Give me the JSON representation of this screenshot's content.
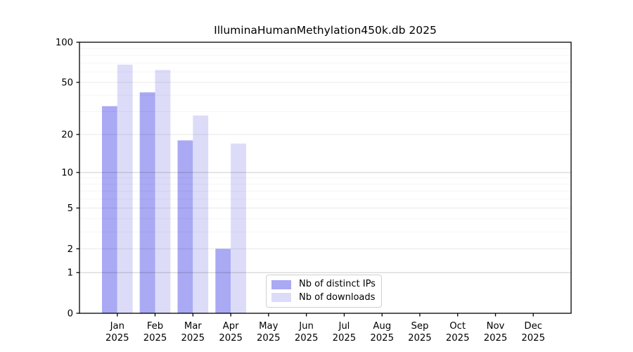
{
  "chart_data": {
    "type": "bar",
    "title": "IlluminaHumanMethylation450k.db 2025",
    "categories": [
      "Jan",
      "Feb",
      "Mar",
      "Apr",
      "May",
      "Jun",
      "Jul",
      "Aug",
      "Sep",
      "Oct",
      "Nov",
      "Dec"
    ],
    "x_sublabel": "2025",
    "series": [
      {
        "name": "Nb of distinct IPs",
        "color": "#a9a9f4",
        "values": [
          33,
          42,
          18,
          2,
          0,
          0,
          0,
          0,
          0,
          0,
          0,
          0
        ]
      },
      {
        "name": "Nb of downloads",
        "color": "#dcdcf9",
        "values": [
          68,
          62,
          28,
          17,
          0,
          0,
          0,
          0,
          0,
          0,
          0,
          0
        ]
      }
    ],
    "y_axis": {
      "scale": "log1p",
      "range": [
        0,
        100
      ],
      "ticks": [
        0,
        1,
        2,
        5,
        10,
        20,
        50,
        100
      ],
      "major_gridlines": [
        1,
        10,
        100
      ],
      "mid_gridlines": [
        2,
        5,
        20,
        50
      ],
      "minor_gridlines": [
        3,
        4,
        6,
        7,
        8,
        9,
        30,
        40,
        60,
        70,
        80,
        90
      ]
    },
    "grid": true,
    "legend": {
      "position": "lower-center"
    },
    "axis_color": "#000000",
    "background_color": "#ffffff"
  }
}
